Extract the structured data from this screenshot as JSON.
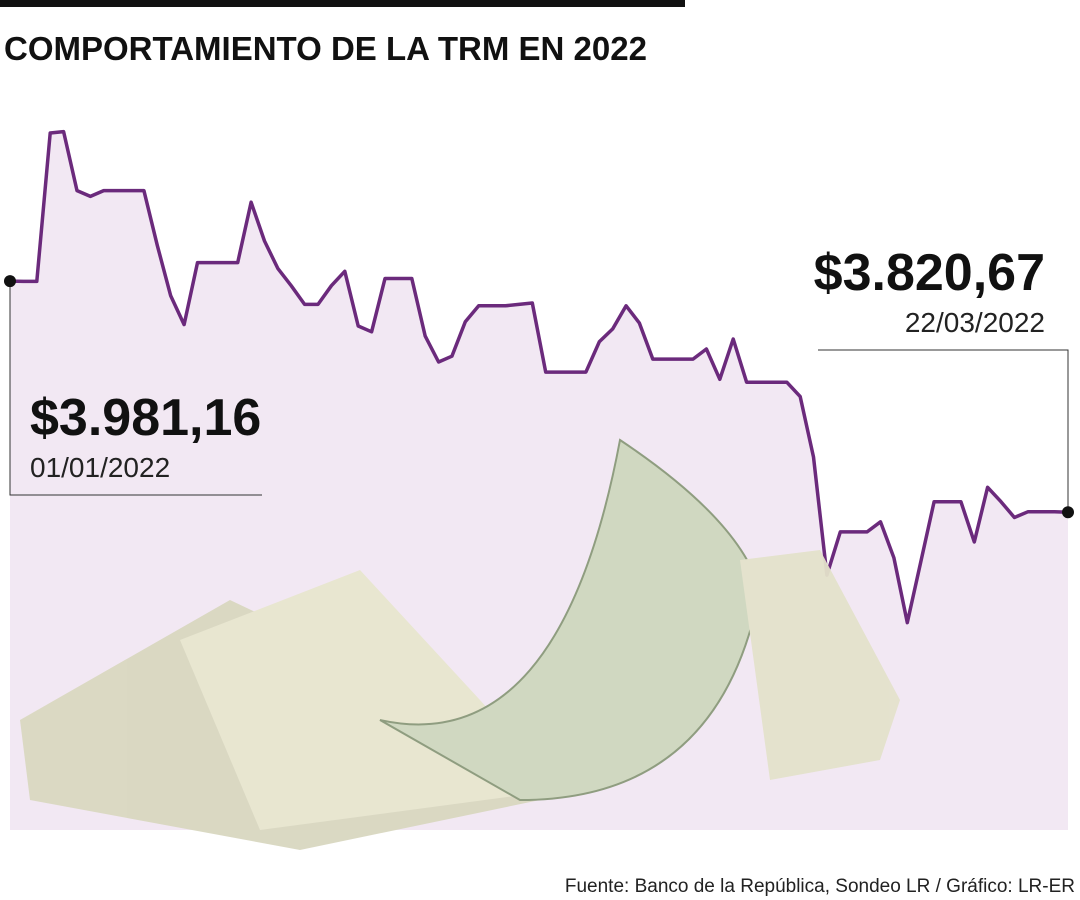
{
  "chart_data": {
    "type": "line",
    "title": "COMPORTAMIENTO DE LA TRM EN 2022",
    "source": "Fuente: Banco de la República, Sondeo LR / Gráfico: LR-ER",
    "color": "#6b2a7c",
    "fill_color": "#f2e8f3",
    "ylim": [
      3600,
      4100
    ],
    "values": [
      3981.16,
      3981,
      3981,
      4084,
      4085,
      4044,
      4040,
      4044,
      4044,
      4044,
      4044,
      4006,
      3971,
      3951,
      3994,
      3994,
      3994,
      3994,
      4036,
      4009,
      3990,
      3978,
      3965,
      3965,
      3978,
      3988,
      3950,
      3946,
      3983,
      3983,
      3983,
      3943,
      3925,
      3929,
      3953,
      3964,
      3964,
      3964,
      3965,
      3966,
      3918,
      3918,
      3918,
      3918,
      3939,
      3948,
      3964,
      3952,
      3927,
      3927,
      3927,
      3927,
      3934,
      3913,
      3941,
      3911,
      3911,
      3911,
      3911,
      3901,
      3859,
      3777,
      3807,
      3807,
      3807,
      3814,
      3789,
      3744,
      3786,
      3828,
      3828,
      3828,
      3800,
      3838,
      3828,
      3817,
      3821,
      3821,
      3821,
      3820.67
    ],
    "annotations": [
      {
        "text": "$3.981,16",
        "date": "01/01/2022"
      },
      {
        "text": "$3.820,67",
        "date": "22/03/2022"
      }
    ]
  }
}
